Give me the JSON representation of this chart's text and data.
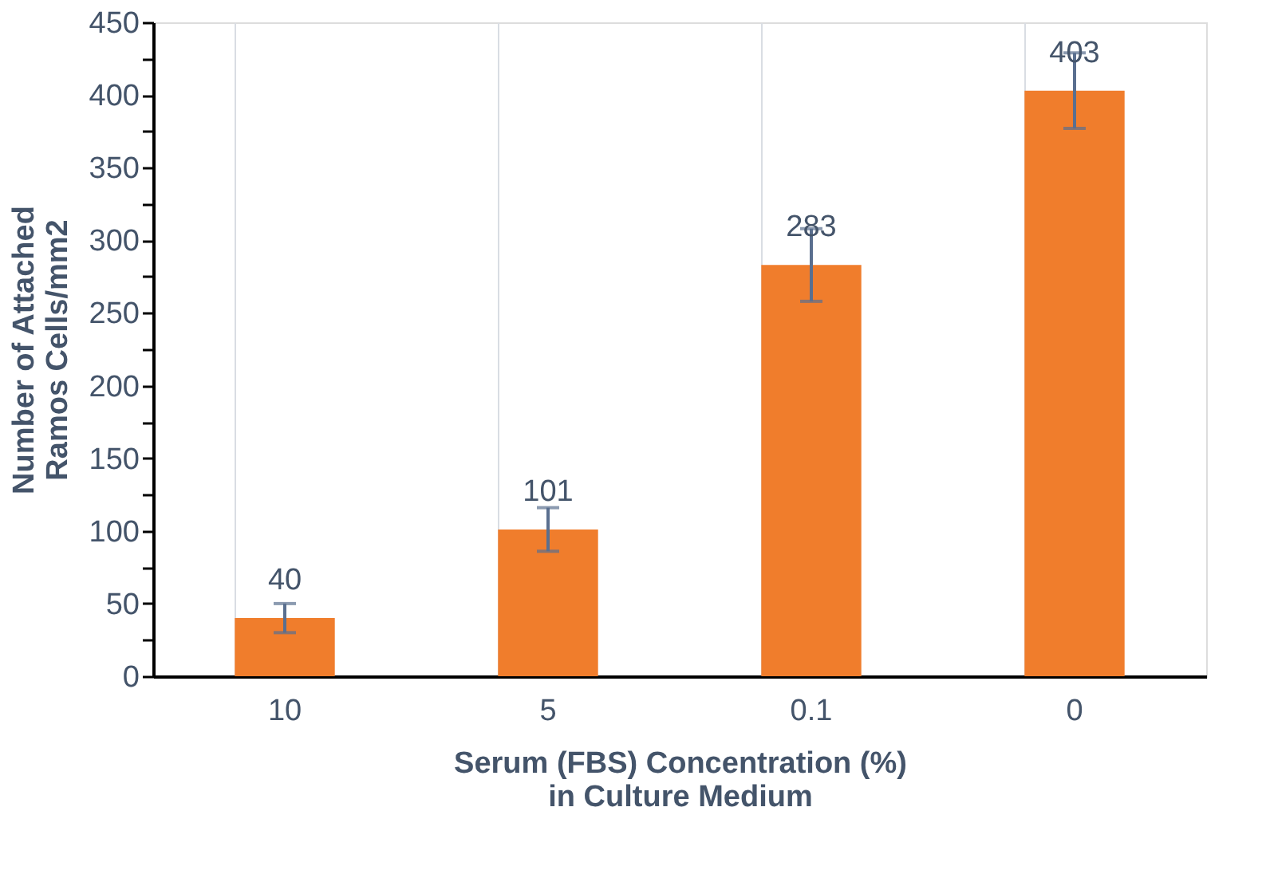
{
  "chart_data": {
    "type": "bar",
    "xlabel": "Serum (FBS) Concentration (%)\nin Culture Medium",
    "ylabel": "Number of Attached\nRamos Cells/mm2",
    "categories": [
      "10",
      "5",
      "0.1",
      "0"
    ],
    "values": [
      40,
      101,
      283,
      403
    ],
    "errors": [
      10,
      15,
      25,
      26
    ],
    "color": "#f07d2c",
    "data_labels": true,
    "ylim": [
      0,
      450
    ],
    "yticks": [
      0,
      {
        "value": 25,
        "label": null
      },
      50,
      {
        "value": 75,
        "label": null
      },
      100,
      {
        "value": 125,
        "label": null
      },
      150,
      {
        "value": 175,
        "label": null
      },
      200,
      {
        "value": 225,
        "label": null
      },
      250,
      {
        "value": 275,
        "label": null
      },
      300,
      {
        "value": 325,
        "label": null
      },
      350,
      {
        "value": 375,
        "label": null
      },
      400,
      {
        "value": 425,
        "label": null
      },
      450
    ],
    "grid": "x"
  }
}
